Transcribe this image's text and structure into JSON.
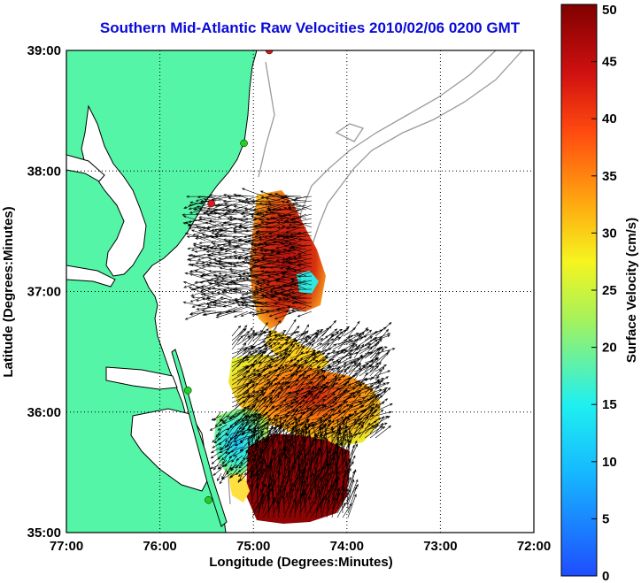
{
  "title": "Southern Mid-Atlantic Raw Velocities 2010/02/06 0200 GMT",
  "map": {
    "x_axis_label": "Longitude (Degrees:Minutes)",
    "y_axis_label": "Latitude (Degrees:Minutes)",
    "x_ticks": [
      "77:00",
      "76:00",
      "75:00",
      "74:00",
      "73:00",
      "72:00"
    ],
    "y_ticks": [
      "39:00",
      "38:00",
      "37:00",
      "36:00",
      "35:00"
    ],
    "lon_range": [
      -77,
      -72
    ],
    "lat_range": [
      35,
      39
    ],
    "grid": "dotted",
    "land_color": "#55f5a8",
    "coastline_color": "#000000",
    "bathymetry_color": "#9a9a9a",
    "station_markers": [
      {
        "lon": -74.83,
        "lat": 39.0,
        "color": "#e01818"
      },
      {
        "lon": -75.1,
        "lat": 38.23,
        "color": "#22d022"
      },
      {
        "lon": -75.45,
        "lat": 37.73,
        "color": "#e01818"
      },
      {
        "lon": -75.7,
        "lat": 36.18,
        "color": "#22d022"
      },
      {
        "lon": -75.48,
        "lat": 35.27,
        "color": "#22d022"
      }
    ]
  },
  "colorbar": {
    "label": "Surface Velocity (cm/s)",
    "ticks": [
      "0",
      "5",
      "10",
      "15",
      "20",
      "25",
      "30",
      "35",
      "40",
      "45",
      "50"
    ],
    "range": [
      0,
      50
    ],
    "colormap": "jet"
  }
}
